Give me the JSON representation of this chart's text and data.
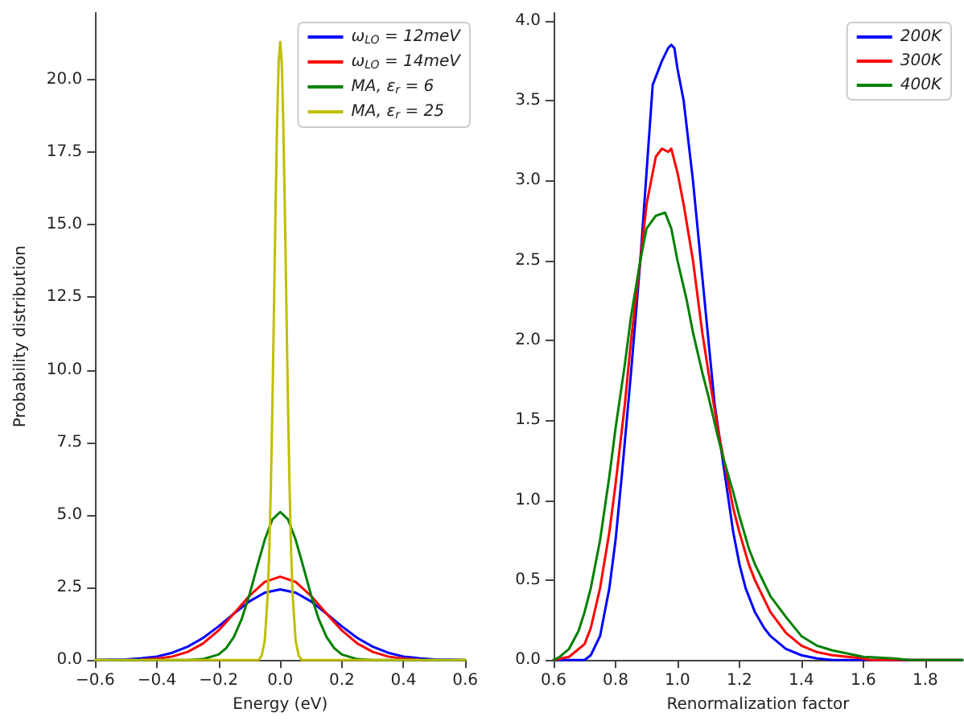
{
  "chart_data": [
    {
      "type": "line",
      "xlabel": "Energy (eV)",
      "ylabel": "Probability distribution",
      "xlim": [
        -0.6,
        0.6
      ],
      "xticks": [
        {
          "value": -0.6,
          "label": "−0.6"
        },
        {
          "value": -0.4,
          "label": "−0.4"
        },
        {
          "value": -0.2,
          "label": "−0.2"
        },
        {
          "value": 0,
          "label": "0.0"
        },
        {
          "value": 0.2,
          "label": "0.2"
        },
        {
          "value": 0.4,
          "label": "0.4"
        },
        {
          "value": 0.6,
          "label": "0.6"
        }
      ],
      "ylim": [
        0,
        22.3
      ],
      "yticks": [
        {
          "value": 0,
          "label": "0.0"
        },
        {
          "value": 2.5,
          "label": "2.5"
        },
        {
          "value": 5,
          "label": "5.0"
        },
        {
          "value": 7.5,
          "label": "7.5"
        },
        {
          "value": 10,
          "label": "10.0"
        },
        {
          "value": 12.5,
          "label": "12.5"
        },
        {
          "value": 15,
          "label": "15.0"
        },
        {
          "value": 17.5,
          "label": "17.5"
        },
        {
          "value": 20,
          "label": "20.0"
        }
      ],
      "legend": "top right",
      "grid": false,
      "marker": "none",
      "line_style": "solid",
      "series": [
        {
          "name": "ω$_{LO}$ = 12meV",
          "color": "#0000ff",
          "x": [
            -0.6,
            -0.55,
            -0.5,
            -0.45,
            -0.4,
            -0.35,
            -0.3,
            -0.25,
            -0.2,
            -0.15,
            -0.1,
            -0.05,
            0,
            0.05,
            0.1,
            0.15,
            0.2,
            0.25,
            0.3,
            0.35,
            0.4,
            0.45,
            0.5,
            0.55,
            0.6
          ],
          "values": [
            0,
            0.01,
            0.02,
            0.06,
            0.12,
            0.25,
            0.46,
            0.76,
            1.16,
            1.6,
            2.02,
            2.32,
            2.43,
            2.32,
            2.02,
            1.6,
            1.16,
            0.76,
            0.46,
            0.25,
            0.12,
            0.06,
            0.02,
            0.01,
            0
          ]
        },
        {
          "name": "ω$_{LO}$ = 14meV",
          "color": "#ff0000",
          "x": [
            -0.45,
            -0.4,
            -0.35,
            -0.3,
            -0.25,
            -0.2,
            -0.15,
            -0.1,
            -0.05,
            0,
            0.05,
            0.1,
            0.15,
            0.2,
            0.25,
            0.3,
            0.35,
            0.4,
            0.45
          ],
          "values": [
            0.01,
            0.05,
            0.12,
            0.28,
            0.57,
            1.02,
            1.6,
            2.21,
            2.69,
            2.87,
            2.69,
            2.21,
            1.6,
            1.02,
            0.57,
            0.28,
            0.12,
            0.05,
            0.01
          ]
        },
        {
          "name": "MA, ε$_{r}$ = 6",
          "color": "#008000",
          "x": [
            -0.6,
            -0.3,
            -0.25,
            -0.2,
            -0.175,
            -0.15,
            -0.125,
            -0.1,
            -0.075,
            -0.05,
            -0.025,
            0,
            0.025,
            0.05,
            0.075,
            0.1,
            0.125,
            0.15,
            0.175,
            0.2,
            0.25,
            0.3,
            0.6
          ],
          "values": [
            0,
            0,
            0.03,
            0.19,
            0.41,
            0.8,
            1.41,
            2.24,
            3.21,
            4.15,
            4.85,
            5.1,
            4.85,
            4.15,
            3.21,
            2.24,
            1.41,
            0.8,
            0.41,
            0.19,
            0.03,
            0,
            0
          ]
        },
        {
          "name": "MA, ε$_{r}$ = 25",
          "color": "#bfbf00",
          "x": [
            -0.6,
            -0.07,
            -0.06,
            -0.05,
            -0.04,
            -0.035,
            -0.03,
            -0.025,
            -0.02,
            -0.015,
            -0.01,
            -0.005,
            0,
            0.005,
            0.01,
            0.015,
            0.02,
            0.025,
            0.03,
            0.035,
            0.04,
            0.05,
            0.06,
            0.07,
            0.6
          ],
          "values": [
            0,
            0,
            0.15,
            0.67,
            2.32,
            3.9,
            6.12,
            8.96,
            12.24,
            15.6,
            18.55,
            20.6,
            21.3,
            20.6,
            18.55,
            15.6,
            12.24,
            8.96,
            6.12,
            3.9,
            2.32,
            0.67,
            0.15,
            0,
            0
          ]
        }
      ]
    },
    {
      "type": "line",
      "xlabel": "Renormalization factor",
      "xlim": [
        0.6,
        1.92
      ],
      "xticks": [
        0.6,
        0.8,
        {
          "value": 1,
          "label": "1.0"
        },
        1.2,
        1.4,
        1.6,
        1.8
      ],
      "ylim": [
        0,
        4.05
      ],
      "yticks": [
        {
          "value": 0,
          "label": "0.0"
        },
        0.5,
        {
          "value": 1,
          "label": "1.0"
        },
        1.5,
        {
          "value": 2,
          "label": "2.0"
        },
        2.5,
        {
          "value": 3,
          "label": "3.0"
        },
        3.5,
        {
          "value": 4,
          "label": "4.0"
        }
      ],
      "legend": "top right",
      "grid": false,
      "marker": "none",
      "line_style": "solid",
      "series": [
        {
          "name": "200K",
          "color": "#0000ff",
          "x": [
            0.6,
            0.7,
            0.72,
            0.75,
            0.78,
            0.8,
            0.82,
            0.85,
            0.88,
            0.9,
            0.92,
            0.95,
            0.97,
            0.98,
            0.99,
            1.0,
            1.02,
            1.05,
            1.08,
            1.1,
            1.12,
            1.15,
            1.18,
            1.2,
            1.22,
            1.25,
            1.28,
            1.3,
            1.35,
            1.4,
            1.45,
            1.5,
            1.92
          ],
          "values": [
            0,
            0,
            0.03,
            0.15,
            0.45,
            0.75,
            1.15,
            1.8,
            2.5,
            3.05,
            3.6,
            3.75,
            3.83,
            3.85,
            3.83,
            3.7,
            3.5,
            3.0,
            2.4,
            2.0,
            1.6,
            1.2,
            0.8,
            0.6,
            0.45,
            0.3,
            0.2,
            0.15,
            0.07,
            0.03,
            0.01,
            0,
            0
          ]
        },
        {
          "name": "300K",
          "color": "#ff0000",
          "x": [
            0.6,
            0.65,
            0.7,
            0.72,
            0.75,
            0.78,
            0.8,
            0.83,
            0.85,
            0.88,
            0.9,
            0.93,
            0.95,
            0.97,
            0.98,
            1.0,
            1.02,
            1.05,
            1.08,
            1.1,
            1.13,
            1.15,
            1.18,
            1.2,
            1.23,
            1.25,
            1.3,
            1.35,
            1.4,
            1.45,
            1.5,
            1.55,
            1.6,
            1.62,
            1.92
          ],
          "values": [
            0,
            0.02,
            0.1,
            0.2,
            0.45,
            0.8,
            1.1,
            1.6,
            2.0,
            2.5,
            2.85,
            3.15,
            3.2,
            3.18,
            3.2,
            3.05,
            2.85,
            2.5,
            2.05,
            1.8,
            1.45,
            1.25,
            0.95,
            0.8,
            0.6,
            0.5,
            0.3,
            0.17,
            0.09,
            0.05,
            0.03,
            0.02,
            0.01,
            0,
            0
          ]
        },
        {
          "name": "400K",
          "color": "#008000",
          "x": [
            0.6,
            0.62,
            0.65,
            0.68,
            0.7,
            0.72,
            0.75,
            0.78,
            0.8,
            0.83,
            0.85,
            0.88,
            0.9,
            0.93,
            0.96,
            0.98,
            1.0,
            1.03,
            1.05,
            1.08,
            1.1,
            1.13,
            1.15,
            1.18,
            1.2,
            1.23,
            1.25,
            1.3,
            1.35,
            1.4,
            1.45,
            1.5,
            1.55,
            1.6,
            1.7,
            1.75,
            1.92
          ],
          "values": [
            0,
            0.02,
            0.07,
            0.18,
            0.3,
            0.45,
            0.75,
            1.15,
            1.45,
            1.85,
            2.15,
            2.5,
            2.7,
            2.78,
            2.8,
            2.7,
            2.5,
            2.25,
            2.05,
            1.8,
            1.65,
            1.4,
            1.25,
            1.05,
            0.9,
            0.7,
            0.6,
            0.4,
            0.27,
            0.15,
            0.09,
            0.06,
            0.04,
            0.02,
            0.01,
            0,
            0
          ]
        }
      ]
    }
  ]
}
